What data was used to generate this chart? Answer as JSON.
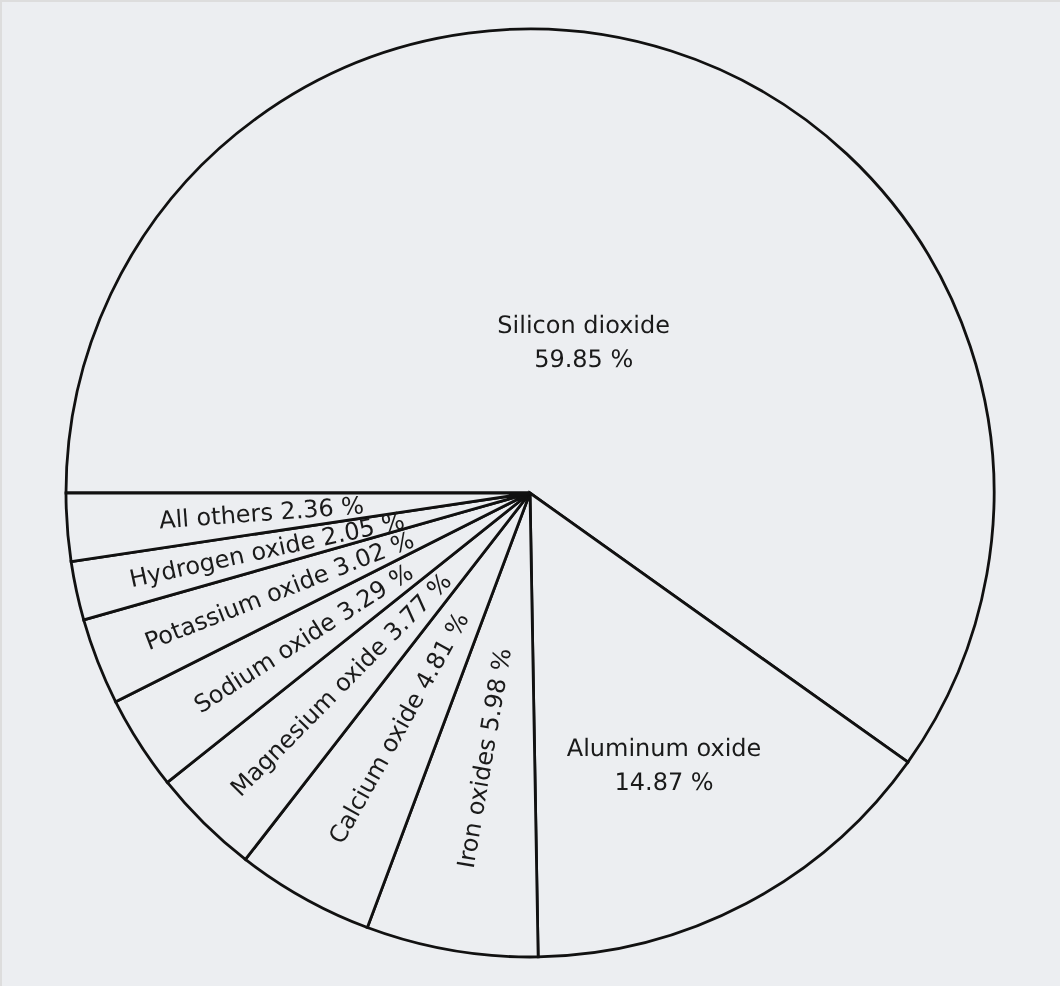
{
  "chart_data": {
    "type": "pie",
    "categories": [
      "Silicon dioxide",
      "Aluminum oxide",
      "Iron oxides",
      "Calcium oxide",
      "Magnesium oxide",
      "Sodium oxide",
      "Potassium oxide",
      "Hydrogen oxide",
      "All others"
    ],
    "values": [
      59.85,
      14.87,
      5.98,
      4.81,
      3.77,
      3.29,
      3.02,
      2.05,
      2.36
    ],
    "value_labels": [
      "59.85 %",
      "14.87 %",
      "5.98 %",
      "4.81 %",
      "3.77 %",
      "3.29 %",
      "3.02 %",
      "2.05 %",
      "2.36 %"
    ],
    "colors": [
      "#eceef1",
      "#eceef1",
      "#eceef1",
      "#eceef1",
      "#eceef1",
      "#eceef1",
      "#eceef1",
      "#eceef1",
      "#eceef1"
    ]
  }
}
